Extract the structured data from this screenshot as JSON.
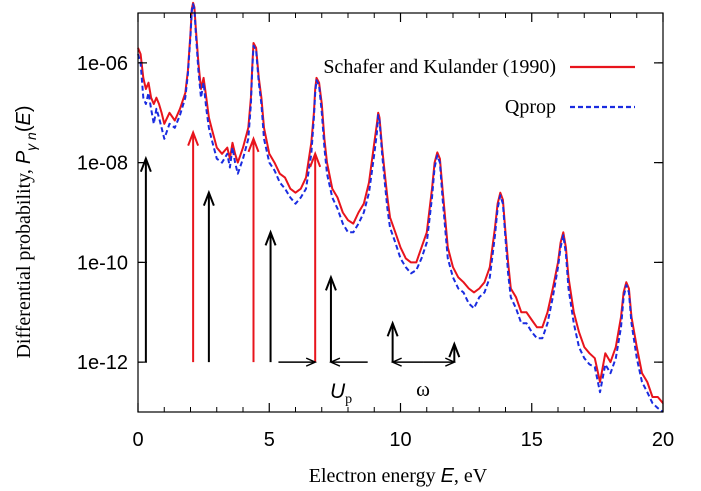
{
  "chart_data": {
    "type": "line",
    "xlabel_prefix": "Electron energy ",
    "xlabel_var": "E",
    "xlabel_suffix": ", eV",
    "ylabel_prefix": "Differential probability, ",
    "ylabel_var": "P",
    "ylabel_sub": "γ n",
    "ylabel_arg": "E",
    "xlim": [
      0,
      20
    ],
    "ylim_log10": [
      -13,
      -5
    ],
    "log_y": true,
    "x_ticks": [
      0,
      5,
      10,
      15,
      20
    ],
    "x_tick_labels": [
      "0",
      "5",
      "10",
      "15",
      "20"
    ],
    "y_ticks_log10": [
      -12,
      -10,
      -8,
      -6
    ],
    "y_tick_labels": [
      "1e-12",
      "1e-10",
      "1e-08",
      "1e-06"
    ],
    "legend_position": "top-right",
    "series": [
      {
        "name": "Schafer and Kulander (1990)",
        "color": "#e8141c",
        "style": "solid",
        "x": [
          0.0,
          0.1,
          0.2,
          0.3,
          0.4,
          0.5,
          0.6,
          0.7,
          0.8,
          0.9,
          1.0,
          1.2,
          1.4,
          1.6,
          1.8,
          1.9,
          2.0,
          2.05,
          2.1,
          2.15,
          2.2,
          2.3,
          2.4,
          2.5,
          2.6,
          2.7,
          2.8,
          3.0,
          3.2,
          3.4,
          3.5,
          3.6,
          3.7,
          3.8,
          4.0,
          4.2,
          4.3,
          4.35,
          4.4,
          4.5,
          4.6,
          4.7,
          4.8,
          5.0,
          5.2,
          5.4,
          5.6,
          5.8,
          6.0,
          6.2,
          6.4,
          6.6,
          6.7,
          6.75,
          6.8,
          6.9,
          7.0,
          7.1,
          7.2,
          7.4,
          7.6,
          7.8,
          8.0,
          8.2,
          8.4,
          8.6,
          8.8,
          9.0,
          9.1,
          9.15,
          9.2,
          9.3,
          9.4,
          9.5,
          9.6,
          9.8,
          10.0,
          10.2,
          10.4,
          10.6,
          10.8,
          11.0,
          11.2,
          11.3,
          11.4,
          11.5,
          11.6,
          11.7,
          11.8,
          12.0,
          12.2,
          12.4,
          12.6,
          12.8,
          13.0,
          13.2,
          13.4,
          13.6,
          13.7,
          13.8,
          13.9,
          14.0,
          14.1,
          14.2,
          14.4,
          14.6,
          14.8,
          15.0,
          15.2,
          15.4,
          15.6,
          15.8,
          16.0,
          16.1,
          16.2,
          16.3,
          16.4,
          16.6,
          16.8,
          17.0,
          17.2,
          17.4,
          17.6,
          17.8,
          18.0,
          18.2,
          18.4,
          18.5,
          18.6,
          18.7,
          18.8,
          19.0,
          19.2,
          19.4,
          19.6,
          19.8,
          20.0
        ],
        "y": [
          2e-06,
          1.5e-06,
          5e-07,
          3e-07,
          4e-07,
          2e-07,
          1.5e-07,
          2e-07,
          1.5e-07,
          1e-07,
          6e-08,
          1e-07,
          7e-08,
          1.2e-07,
          2.5e-07,
          7e-07,
          4e-06,
          1.2e-05,
          1.6e-05,
          1.3e-05,
          5e-06,
          1e-06,
          3e-07,
          5e-07,
          2e-07,
          8e-08,
          5e-08,
          2e-08,
          1.5e-08,
          2e-08,
          1.2e-08,
          2.5e-08,
          1.5e-08,
          1e-08,
          2e-08,
          5e-08,
          2e-07,
          8e-07,
          2.5e-06,
          2e-06,
          5e-07,
          2e-07,
          5e-08,
          1.5e-08,
          1e-08,
          6e-09,
          5e-09,
          3e-09,
          2.5e-09,
          3e-09,
          5e-09,
          2.5e-08,
          1e-07,
          3e-07,
          5e-07,
          4e-07,
          1.5e-07,
          3e-08,
          1e-08,
          3e-09,
          2e-09,
          1e-09,
          7e-10,
          6e-10,
          1e-09,
          1.5e-09,
          4e-09,
          2.5e-08,
          6e-08,
          1e-07,
          8e-08,
          2e-08,
          6e-09,
          2e-09,
          8e-10,
          4e-10,
          2e-10,
          1.2e-10,
          1e-10,
          1e-10,
          2e-10,
          4e-10,
          3e-09,
          1e-08,
          1.6e-08,
          1.2e-08,
          3e-09,
          8e-10,
          2e-10,
          8e-11,
          5e-11,
          4e-11,
          3e-11,
          2.5e-11,
          3e-11,
          4e-11,
          8e-11,
          5e-10,
          1.5e-09,
          2.5e-09,
          1.8e-09,
          4e-10,
          1e-10,
          3e-11,
          2e-11,
          1e-11,
          1e-11,
          7e-12,
          5e-12,
          5e-12,
          1e-11,
          3e-11,
          1e-10,
          2.5e-10,
          4e-10,
          2e-10,
          5e-11,
          1e-11,
          4e-12,
          2e-12,
          1.5e-12,
          1.2e-12,
          4e-13,
          1.5e-12,
          1e-12,
          2e-12,
          8e-12,
          2.5e-11,
          4e-11,
          3e-11,
          8e-12,
          2e-12,
          6e-13,
          4e-13,
          2e-13,
          2e-13,
          1.5e-13
        ]
      },
      {
        "name": "Qprop",
        "color": "#1a2ce0",
        "style": "dashed",
        "x": [
          0.0,
          0.1,
          0.2,
          0.3,
          0.4,
          0.5,
          0.6,
          0.7,
          0.8,
          0.9,
          1.0,
          1.2,
          1.4,
          1.6,
          1.8,
          1.9,
          2.0,
          2.05,
          2.1,
          2.15,
          2.2,
          2.3,
          2.4,
          2.5,
          2.6,
          2.7,
          2.8,
          3.0,
          3.2,
          3.4,
          3.5,
          3.6,
          3.7,
          3.8,
          4.0,
          4.2,
          4.3,
          4.35,
          4.4,
          4.5,
          4.6,
          4.7,
          4.8,
          5.0,
          5.2,
          5.4,
          5.6,
          5.8,
          6.0,
          6.2,
          6.4,
          6.6,
          6.7,
          6.75,
          6.8,
          6.9,
          7.0,
          7.1,
          7.2,
          7.4,
          7.6,
          7.8,
          8.0,
          8.2,
          8.4,
          8.6,
          8.8,
          9.0,
          9.1,
          9.15,
          9.2,
          9.3,
          9.4,
          9.5,
          9.6,
          9.8,
          10.0,
          10.2,
          10.4,
          10.6,
          10.8,
          11.0,
          11.2,
          11.3,
          11.4,
          11.5,
          11.6,
          11.7,
          11.8,
          12.0,
          12.2,
          12.4,
          12.6,
          12.8,
          13.0,
          13.2,
          13.4,
          13.6,
          13.7,
          13.8,
          13.9,
          14.0,
          14.1,
          14.2,
          14.4,
          14.6,
          14.8,
          15.0,
          15.2,
          15.4,
          15.6,
          15.8,
          16.0,
          16.1,
          16.2,
          16.3,
          16.4,
          16.6,
          16.8,
          17.0,
          17.2,
          17.4,
          17.6,
          17.8,
          18.0,
          18.2,
          18.4,
          18.5,
          18.6,
          18.7,
          18.8,
          19.0,
          19.2,
          19.4,
          19.6,
          19.8,
          20.0
        ],
        "y": [
          1.5e-06,
          1e-06,
          2e-07,
          1.5e-07,
          2.5e-07,
          1.2e-07,
          6e-08,
          1.2e-07,
          8e-08,
          5e-08,
          3e-08,
          6e-08,
          5e-08,
          9e-08,
          2e-07,
          6e-07,
          3.5e-06,
          1.1e-05,
          1.5e-05,
          1.2e-05,
          4e-06,
          7e-07,
          2e-07,
          4e-07,
          1.2e-07,
          5e-08,
          3e-08,
          1.2e-08,
          1e-08,
          1.5e-08,
          8e-09,
          2e-08,
          1e-08,
          6e-09,
          1.2e-08,
          3e-08,
          1.5e-07,
          7e-07,
          2.2e-06,
          1.8e-06,
          4e-07,
          1.5e-07,
          3e-08,
          1e-08,
          7e-09,
          4e-09,
          3e-09,
          2e-09,
          1.5e-09,
          2e-09,
          3e-09,
          1.5e-08,
          8e-08,
          2.5e-07,
          4.5e-07,
          3.5e-07,
          1e-07,
          2e-08,
          6e-09,
          2e-09,
          1.2e-09,
          6e-10,
          4e-10,
          4e-10,
          6e-10,
          1e-09,
          2.5e-09,
          1.5e-08,
          4e-08,
          9e-08,
          7e-08,
          1.5e-08,
          4e-09,
          1.2e-09,
          5e-10,
          2.5e-10,
          1.2e-10,
          8e-11,
          6e-11,
          7e-11,
          1.2e-10,
          2.5e-10,
          2e-09,
          8e-09,
          1.4e-08,
          1e-08,
          2e-09,
          5e-10,
          1.2e-10,
          5e-11,
          3e-11,
          2.5e-11,
          1.5e-11,
          1.2e-11,
          2e-11,
          2.5e-11,
          5e-11,
          3.5e-10,
          1.2e-09,
          2.2e-09,
          1.5e-09,
          3e-10,
          6e-11,
          2e-11,
          1.2e-11,
          6e-12,
          6e-12,
          4e-12,
          3e-12,
          3e-12,
          6e-12,
          2e-11,
          8e-11,
          2e-10,
          3.5e-10,
          1.5e-10,
          3e-11,
          6e-12,
          2e-12,
          1.2e-12,
          9e-13,
          8e-13,
          2.5e-13,
          9e-13,
          6e-13,
          1.2e-12,
          5e-12,
          2e-11,
          3.5e-11,
          2.5e-11,
          6e-12,
          1.2e-12,
          4e-13,
          2.5e-13,
          1.5e-13,
          1.2e-13,
          1e-13
        ]
      }
    ],
    "annotations": {
      "red_arrows": [
        {
          "x": 2.1,
          "y_from": 1e-12,
          "y_to": 4e-08,
          "color": "#e8141c"
        },
        {
          "x": 4.4,
          "y_from": 1e-12,
          "y_to": 3e-08,
          "color": "#e8141c"
        },
        {
          "x": 6.75,
          "y_from": 1e-12,
          "y_to": 1.5e-08,
          "color": "#e8141c"
        }
      ],
      "black_arrows": [
        {
          "x": 0.3,
          "y_from": 1e-12,
          "y_to": 1.2e-08
        },
        {
          "x": 2.7,
          "y_from": 1e-12,
          "y_to": 2.5e-09
        },
        {
          "x": 5.05,
          "y_from": 1e-12,
          "y_to": 4e-10
        },
        {
          "x": 7.35,
          "y_from": 1e-12,
          "y_to": 5e-11
        },
        {
          "x": 9.7,
          "y_from": 1e-12,
          "y_to": 6e-12
        },
        {
          "x": 12.05,
          "y_from": 1e-12,
          "y_to": 2.3e-12
        }
      ],
      "up_span": {
        "x1": 6.75,
        "x2": 7.35,
        "y": 1e-12,
        "label": "U",
        "label_sub": "p"
      },
      "omega_span": {
        "x1": 9.7,
        "x2": 12.05,
        "y": 1e-12,
        "label": "ω"
      }
    }
  }
}
